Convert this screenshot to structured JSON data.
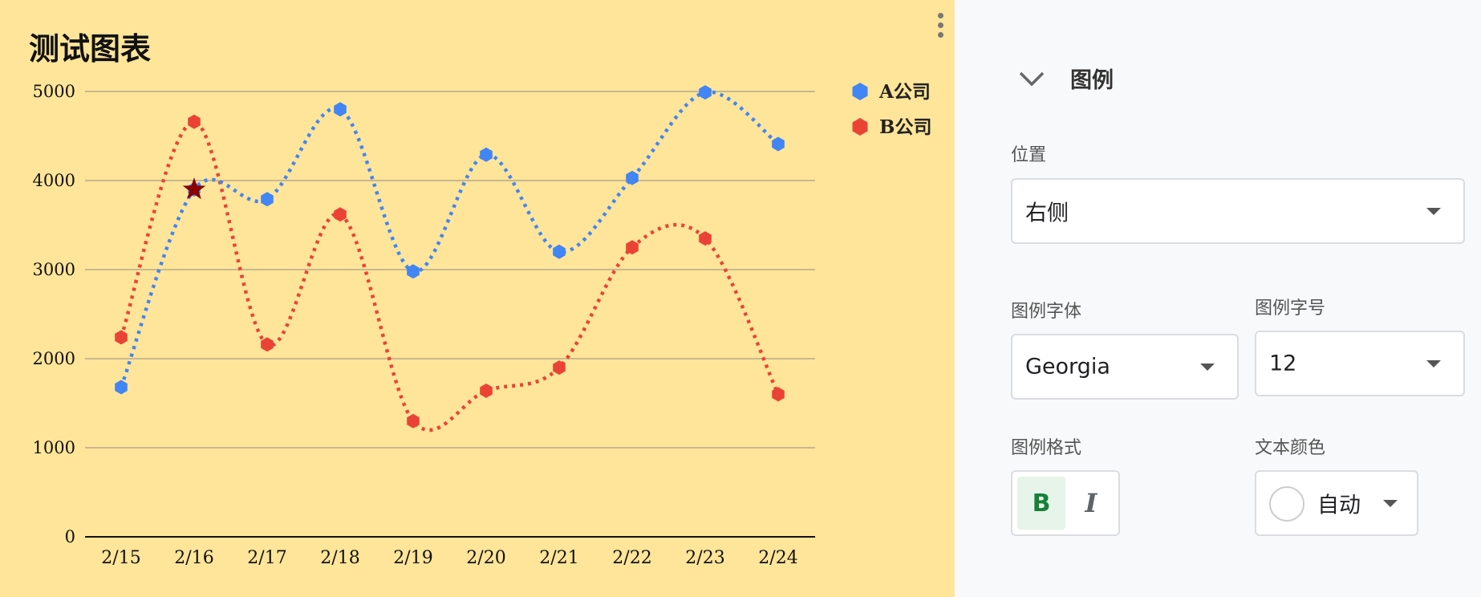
{
  "chart_panel": {
    "title": "测试图表",
    "menu_icon": "more-vert-icon",
    "background_color": "#ffe599"
  },
  "chart_data": {
    "type": "line",
    "title": "测试图表",
    "categories": [
      "2/15",
      "2/16",
      "2/17",
      "2/18",
      "2/19",
      "2/20",
      "2/21",
      "2/22",
      "2/23",
      "2/24"
    ],
    "series": [
      {
        "name": "A公司",
        "color": "#4285f4",
        "values": [
          1680,
          3900,
          3790,
          4800,
          2980,
          4290,
          3200,
          4030,
          4990,
          4410
        ]
      },
      {
        "name": "B公司",
        "color": "#ea4335",
        "values": [
          2240,
          4660,
          2160,
          3620,
          1300,
          1640,
          1900,
          3250,
          3350,
          1600
        ]
      }
    ],
    "ylim": [
      0,
      5000
    ],
    "yticks": [
      0,
      1000,
      2000,
      3000,
      4000,
      5000
    ],
    "line_style": "dotted",
    "smooth": true,
    "marker": "hexagon",
    "grid": true,
    "legend_position": "right",
    "annotation": {
      "type": "star",
      "category": "2/16",
      "value": 3900,
      "color": "#8b0000"
    }
  },
  "sidebar": {
    "section_title": "图例",
    "section_icon": "chevron-down-icon",
    "position_label": "位置",
    "position_value": "右侧",
    "font_label": "图例字体",
    "font_value": "Georgia",
    "size_label": "图例字号",
    "size_value": "12",
    "format_label": "图例格式",
    "bold_label": "B",
    "italic_label": "I",
    "color_label": "文本颜色",
    "color_value": "自动",
    "bold_active_bg": "#e6f4ea",
    "bold_active_color": "#188038"
  }
}
